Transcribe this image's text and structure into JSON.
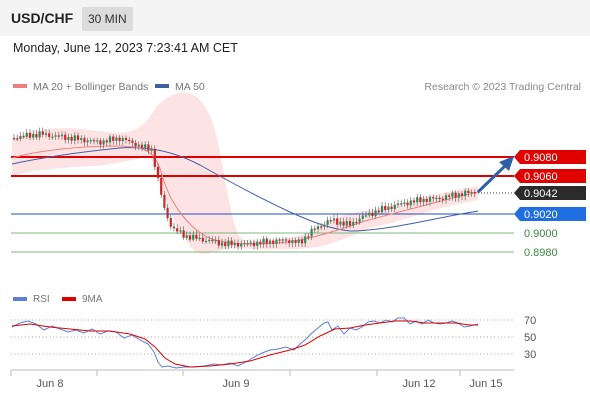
{
  "header": {
    "pair": "USD/CHF",
    "interval": "30 MIN",
    "datetime": "Monday, June 12, 2023 7:23:41 AM CET"
  },
  "legend": {
    "ma20_label": "MA 20 + Bollinger Bands",
    "ma50_label": "MA 50",
    "research": "Research © 2023 Trading Central"
  },
  "colors": {
    "ma20": "#f08080",
    "ma50": "#3f5fa8",
    "bollinger_fill": "#fde3e3",
    "resistance": "#e00000",
    "support": "#1f4fbf",
    "support_green": "#5aa05a",
    "candle_green": "#2e8b57",
    "candle_red": "#c62828",
    "rsi": "#5b7fd6",
    "rsi_ma": "#e00000",
    "arrow": "#2f5fa8"
  },
  "levels": {
    "r2": "0.9080",
    "r1": "0.9060",
    "current": "0.9042",
    "s1": "0.9020",
    "s2": "0.9000",
    "s3": "0.8980"
  },
  "rsi_legend": {
    "rsi_label": "RSI",
    "ma_label": "9MA"
  },
  "rsi_axis": [
    "70",
    "50",
    "30"
  ],
  "x_axis": [
    "Jun 8",
    "Jun 9",
    "Jun 12",
    "Jun 15"
  ]
}
